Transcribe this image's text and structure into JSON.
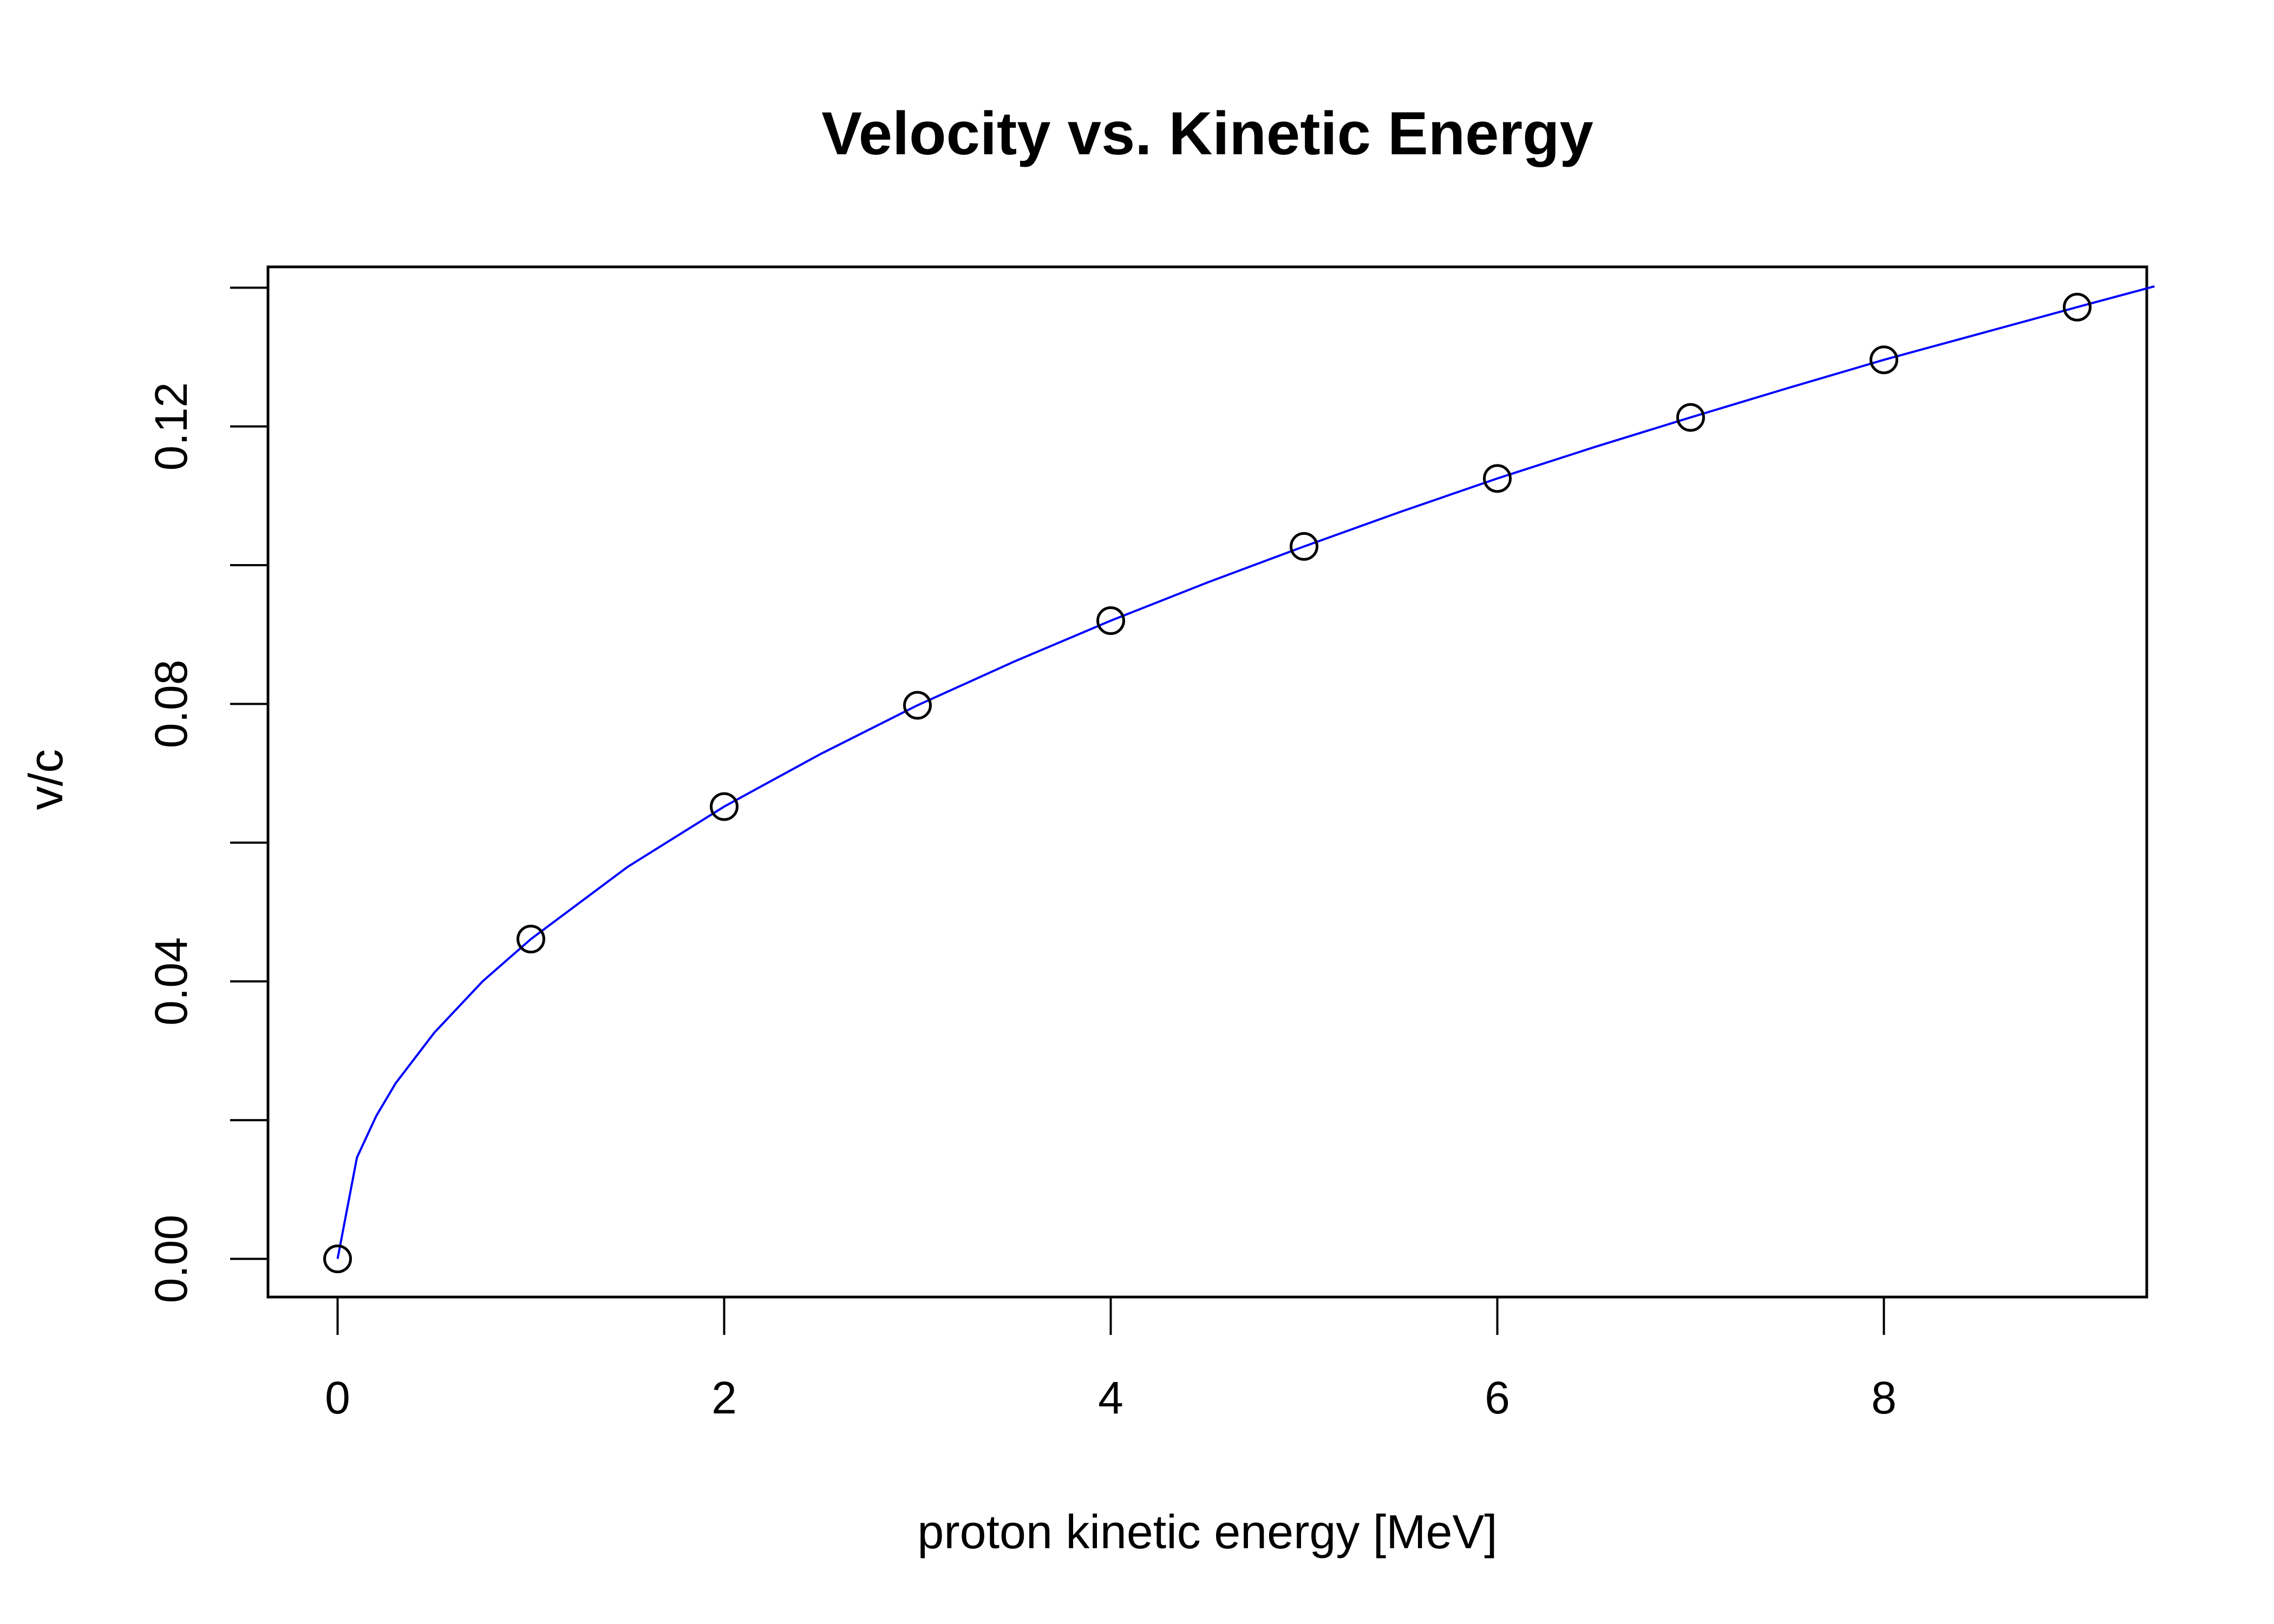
{
  "chart_data": {
    "type": "scatter",
    "title": "Velocity vs. Kinetic Energy",
    "xlabel": "proton kinetic energy [MeV]",
    "ylabel": "v/c",
    "xlim": [
      -0.36,
      9.36
    ],
    "ylim": [
      -0.0055,
      0.143
    ],
    "grid": false,
    "x_ticks": [
      0,
      2,
      4,
      6,
      8
    ],
    "x_tick_labels": [
      "0",
      "2",
      "4",
      "6",
      "8"
    ],
    "y_ticks": [
      0,
      0.02,
      0.04,
      0.06,
      0.08,
      0.1,
      0.12,
      0.14
    ],
    "y_tick_labels": [
      "0.00",
      "",
      "0.04",
      "",
      "0.08",
      "",
      "0.12",
      ""
    ],
    "points": {
      "x": [
        0,
        1,
        2,
        3,
        4,
        5,
        6,
        7,
        8,
        9
      ],
      "y": [
        0,
        0.0461,
        0.0652,
        0.0798,
        0.092,
        0.1027,
        0.1125,
        0.1213,
        0.1296,
        0.1372
      ],
      "marker": "open-circle",
      "color": "#000000"
    },
    "curve": {
      "color": "#0000ff",
      "x": [
        0,
        0.1,
        0.2,
        0.3,
        0.5,
        0.75,
        1,
        1.5,
        2,
        2.5,
        3,
        3.5,
        4,
        4.5,
        5,
        5.5,
        6,
        6.5,
        7,
        7.5,
        8,
        8.5,
        9,
        9.4
      ],
      "y": [
        0,
        0.0146,
        0.0206,
        0.0253,
        0.0326,
        0.04,
        0.0461,
        0.0565,
        0.0652,
        0.0728,
        0.0798,
        0.0861,
        0.092,
        0.0975,
        0.1027,
        0.1077,
        0.1125,
        0.117,
        0.1213,
        0.1255,
        0.1296,
        0.1334,
        0.1372,
        0.1402
      ]
    }
  }
}
